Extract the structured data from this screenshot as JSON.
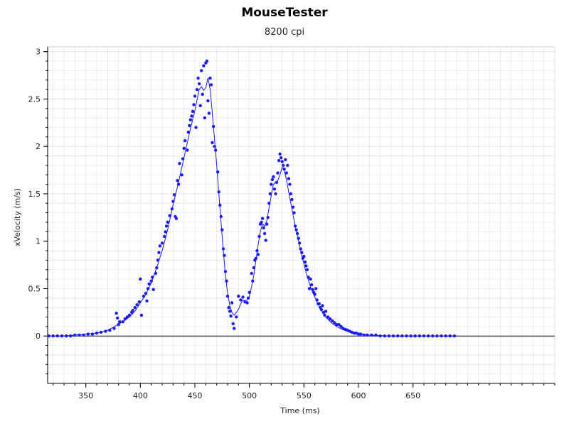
{
  "chart_data": {
    "type": "scatter",
    "title": "MouseTester",
    "subtitle": "8200 cpi",
    "xlabel": "Time (ms)",
    "ylabel": "xVelocity (m/s)",
    "xlim": [
      315,
      780
    ],
    "ylim": [
      -0.5,
      3.05
    ],
    "x_ticks": [
      350,
      400,
      450,
      500,
      550,
      600,
      650
    ],
    "y_ticks": [
      0,
      0.5,
      1,
      1.5,
      2,
      2.5,
      3
    ],
    "y_tick_labels": [
      "0",
      "0.5",
      "1",
      "1.5",
      "2",
      "2.5",
      "3"
    ],
    "grid": true,
    "colors": {
      "series": "#1a1aff",
      "grid": "#e6e6e6",
      "axis": "#000000"
    },
    "series": [
      {
        "type": "scatter",
        "points": [
          [
            316,
            0
          ],
          [
            320,
            0
          ],
          [
            324,
            0
          ],
          [
            328,
            0
          ],
          [
            332,
            0
          ],
          [
            336,
            0
          ],
          [
            340,
            0.01
          ],
          [
            344,
            0.01
          ],
          [
            348,
            0.01
          ],
          [
            352,
            0.02
          ],
          [
            356,
            0.02
          ],
          [
            360,
            0.03
          ],
          [
            364,
            0.04
          ],
          [
            368,
            0.05
          ],
          [
            372,
            0.06
          ],
          [
            376,
            0.08
          ],
          [
            378,
            0.24
          ],
          [
            379,
            0.19
          ],
          [
            380,
            0.12
          ],
          [
            381,
            0.15
          ],
          [
            384,
            0.15
          ],
          [
            386,
            0.18
          ],
          [
            388,
            0.2
          ],
          [
            390,
            0.22
          ],
          [
            392,
            0.25
          ],
          [
            393,
            0.27
          ],
          [
            395,
            0.3
          ],
          [
            397,
            0.33
          ],
          [
            399,
            0.36
          ],
          [
            400,
            0.6
          ],
          [
            401,
            0.22
          ],
          [
            403,
            0.42
          ],
          [
            405,
            0.45
          ],
          [
            406,
            0.37
          ],
          [
            407,
            0.5
          ],
          [
            408,
            0.55
          ],
          [
            410,
            0.58
          ],
          [
            411,
            0.62
          ],
          [
            412,
            0.49
          ],
          [
            414,
            0.66
          ],
          [
            415,
            0.72
          ],
          [
            416,
            0.8
          ],
          [
            417,
            0.88
          ],
          [
            418,
            0.95
          ],
          [
            420,
            0.98
          ],
          [
            422,
            1.05
          ],
          [
            423,
            1.1
          ],
          [
            424,
            1.16
          ],
          [
            425,
            1.2
          ],
          [
            427,
            1.27
          ],
          [
            429,
            1.34
          ],
          [
            430,
            1.42
          ],
          [
            431,
            1.49
          ],
          [
            432,
            1.26
          ],
          [
            433,
            1.24
          ],
          [
            434,
            1.64
          ],
          [
            435,
            1.6
          ],
          [
            436,
            1.82
          ],
          [
            438,
            1.7
          ],
          [
            439,
            1.87
          ],
          [
            440,
            1.98
          ],
          [
            441,
            2.06
          ],
          [
            443,
            1.96
          ],
          [
            444,
            2.15
          ],
          [
            445,
            2.22
          ],
          [
            446,
            2.28
          ],
          [
            447,
            2.32
          ],
          [
            448,
            2.37
          ],
          [
            449,
            2.44
          ],
          [
            450,
            2.53
          ],
          [
            451,
            2.2
          ],
          [
            452,
            2.6
          ],
          [
            453,
            2.72
          ],
          [
            454,
            2.66
          ],
          [
            455,
            2.43
          ],
          [
            456,
            2.8
          ],
          [
            457,
            2.55
          ],
          [
            458,
            2.85
          ],
          [
            459,
            2.3
          ],
          [
            460,
            2.88
          ],
          [
            461,
            2.9
          ],
          [
            462,
            2.48
          ],
          [
            463,
            2.35
          ],
          [
            464,
            2.72
          ],
          [
            465,
            2.65
          ],
          [
            466,
            2.04
          ],
          [
            467,
            2.21
          ],
          [
            468,
            2.0
          ],
          [
            469,
            1.96
          ],
          [
            471,
            1.73
          ],
          [
            472,
            1.52
          ],
          [
            473,
            1.38
          ],
          [
            474,
            1.26
          ],
          [
            475,
            1.12
          ],
          [
            476,
            0.92
          ],
          [
            477,
            0.85
          ],
          [
            478,
            0.68
          ],
          [
            479,
            0.58
          ],
          [
            480,
            0.42
          ],
          [
            481,
            0.3
          ],
          [
            482,
            0.26
          ],
          [
            483,
            0.21
          ],
          [
            484,
            0.35
          ],
          [
            485,
            0.13
          ],
          [
            486,
            0.08
          ],
          [
            488,
            0.2
          ],
          [
            490,
            0.42
          ],
          [
            492,
            0.38
          ],
          [
            494,
            0.41
          ],
          [
            496,
            0.36
          ],
          [
            498,
            0.35
          ],
          [
            499,
            0.4
          ],
          [
            500,
            0.46
          ],
          [
            502,
            0.66
          ],
          [
            503,
            0.58
          ],
          [
            504,
            0.72
          ],
          [
            505,
            0.8
          ],
          [
            506,
            0.82
          ],
          [
            507,
            0.9
          ],
          [
            508,
            0.86
          ],
          [
            509,
            1.05
          ],
          [
            510,
            1.18
          ],
          [
            511,
            1.2
          ],
          [
            512,
            1.24
          ],
          [
            513,
            1.14
          ],
          [
            514,
            1.08
          ],
          [
            515,
            1.01
          ],
          [
            516,
            1.18
          ],
          [
            517,
            1.25
          ],
          [
            518,
            1.4
          ],
          [
            519,
            1.5
          ],
          [
            520,
            1.6
          ],
          [
            521,
            1.65
          ],
          [
            522,
            1.68
          ],
          [
            523,
            1.55
          ],
          [
            524,
            1.5
          ],
          [
            525,
            1.62
          ],
          [
            526,
            1.72
          ],
          [
            527,
            1.85
          ],
          [
            528,
            1.92
          ],
          [
            529,
            1.88
          ],
          [
            530,
            1.84
          ],
          [
            531,
            1.8
          ],
          [
            532,
            1.76
          ],
          [
            533,
            1.86
          ],
          [
            534,
            1.72
          ],
          [
            535,
            1.8
          ],
          [
            536,
            1.66
          ],
          [
            537,
            1.6
          ],
          [
            538,
            1.5
          ],
          [
            539,
            1.44
          ],
          [
            540,
            1.36
          ],
          [
            541,
            1.3
          ],
          [
            542,
            1.16
          ],
          [
            543,
            1.12
          ],
          [
            544,
            1.08
          ],
          [
            545,
            1.03
          ],
          [
            546,
            0.98
          ],
          [
            547,
            0.92
          ],
          [
            548,
            0.88
          ],
          [
            549,
            0.82
          ],
          [
            550,
            0.84
          ],
          [
            551,
            0.78
          ],
          [
            552,
            0.74
          ],
          [
            553,
            0.7
          ],
          [
            554,
            0.62
          ],
          [
            555,
            0.5
          ],
          [
            556,
            0.6
          ],
          [
            557,
            0.54
          ],
          [
            558,
            0.49
          ],
          [
            559,
            0.46
          ],
          [
            560,
            0.44
          ],
          [
            561,
            0.5
          ],
          [
            562,
            0.38
          ],
          [
            563,
            0.34
          ],
          [
            564,
            0.34
          ],
          [
            565,
            0.3
          ],
          [
            566,
            0.28
          ],
          [
            567,
            0.32
          ],
          [
            568,
            0.25
          ],
          [
            569,
            0.22
          ],
          [
            570,
            0.26
          ],
          [
            572,
            0.2
          ],
          [
            574,
            0.18
          ],
          [
            576,
            0.16
          ],
          [
            578,
            0.14
          ],
          [
            580,
            0.12
          ],
          [
            582,
            0.12
          ],
          [
            584,
            0.1
          ],
          [
            586,
            0.08
          ],
          [
            588,
            0.07
          ],
          [
            590,
            0.06
          ],
          [
            592,
            0.05
          ],
          [
            594,
            0.04
          ],
          [
            596,
            0.03
          ],
          [
            598,
            0.03
          ],
          [
            600,
            0.02
          ],
          [
            602,
            0.02
          ],
          [
            605,
            0.01
          ],
          [
            608,
            0.01
          ],
          [
            612,
            0.01
          ],
          [
            616,
            0.01
          ],
          [
            620,
            0
          ],
          [
            624,
            0
          ],
          [
            628,
            0
          ],
          [
            632,
            0
          ],
          [
            636,
            0
          ],
          [
            640,
            0
          ],
          [
            644,
            0
          ],
          [
            648,
            0
          ],
          [
            652,
            0
          ],
          [
            656,
            0
          ],
          [
            660,
            0
          ],
          [
            664,
            0
          ],
          [
            668,
            0
          ],
          [
            672,
            0
          ],
          [
            676,
            0
          ],
          [
            680,
            0
          ],
          [
            684,
            0
          ],
          [
            688,
            0
          ]
        ]
      },
      {
        "type": "line",
        "points": [
          [
            316,
            0
          ],
          [
            330,
            0
          ],
          [
            340,
            0.01
          ],
          [
            350,
            0.02
          ],
          [
            360,
            0.03
          ],
          [
            370,
            0.06
          ],
          [
            378,
            0.11
          ],
          [
            385,
            0.16
          ],
          [
            390,
            0.2
          ],
          [
            395,
            0.26
          ],
          [
            400,
            0.35
          ],
          [
            405,
            0.44
          ],
          [
            410,
            0.56
          ],
          [
            415,
            0.72
          ],
          [
            420,
            0.9
          ],
          [
            425,
            1.12
          ],
          [
            430,
            1.38
          ],
          [
            435,
            1.62
          ],
          [
            440,
            1.88
          ],
          [
            445,
            2.14
          ],
          [
            450,
            2.38
          ],
          [
            454,
            2.6
          ],
          [
            456,
            2.63
          ],
          [
            458,
            2.59
          ],
          [
            460,
            2.62
          ],
          [
            462,
            2.72
          ],
          [
            464,
            2.6
          ],
          [
            466,
            2.35
          ],
          [
            468,
            2.08
          ],
          [
            470,
            1.8
          ],
          [
            472,
            1.5
          ],
          [
            474,
            1.2
          ],
          [
            476,
            0.9
          ],
          [
            478,
            0.65
          ],
          [
            480,
            0.45
          ],
          [
            482,
            0.32
          ],
          [
            484,
            0.25
          ],
          [
            486,
            0.22
          ],
          [
            488,
            0.25
          ],
          [
            490,
            0.28
          ],
          [
            492,
            0.34
          ],
          [
            494,
            0.38
          ],
          [
            496,
            0.37
          ],
          [
            498,
            0.38
          ],
          [
            500,
            0.42
          ],
          [
            502,
            0.52
          ],
          [
            504,
            0.64
          ],
          [
            506,
            0.8
          ],
          [
            508,
            0.96
          ],
          [
            510,
            1.1
          ],
          [
            512,
            1.18
          ],
          [
            514,
            1.16
          ],
          [
            516,
            1.22
          ],
          [
            518,
            1.35
          ],
          [
            520,
            1.48
          ],
          [
            522,
            1.6
          ],
          [
            524,
            1.62
          ],
          [
            526,
            1.64
          ],
          [
            528,
            1.7
          ],
          [
            530,
            1.78
          ],
          [
            532,
            1.74
          ],
          [
            534,
            1.65
          ],
          [
            536,
            1.52
          ],
          [
            538,
            1.4
          ],
          [
            540,
            1.28
          ],
          [
            542,
            1.16
          ],
          [
            544,
            1.06
          ],
          [
            546,
            0.95
          ],
          [
            548,
            0.85
          ],
          [
            550,
            0.76
          ],
          [
            552,
            0.67
          ],
          [
            554,
            0.59
          ],
          [
            556,
            0.52
          ],
          [
            558,
            0.46
          ],
          [
            560,
            0.41
          ],
          [
            562,
            0.36
          ],
          [
            564,
            0.31
          ],
          [
            566,
            0.27
          ],
          [
            568,
            0.23
          ],
          [
            570,
            0.2
          ],
          [
            575,
            0.14
          ],
          [
            580,
            0.1
          ],
          [
            585,
            0.07
          ],
          [
            590,
            0.05
          ],
          [
            595,
            0.035
          ],
          [
            600,
            0.025
          ],
          [
            610,
            0.01
          ],
          [
            620,
            0.004
          ],
          [
            630,
            0
          ],
          [
            640,
            0
          ],
          [
            660,
            0
          ],
          [
            680,
            0
          ],
          [
            690,
            0
          ]
        ]
      }
    ]
  }
}
